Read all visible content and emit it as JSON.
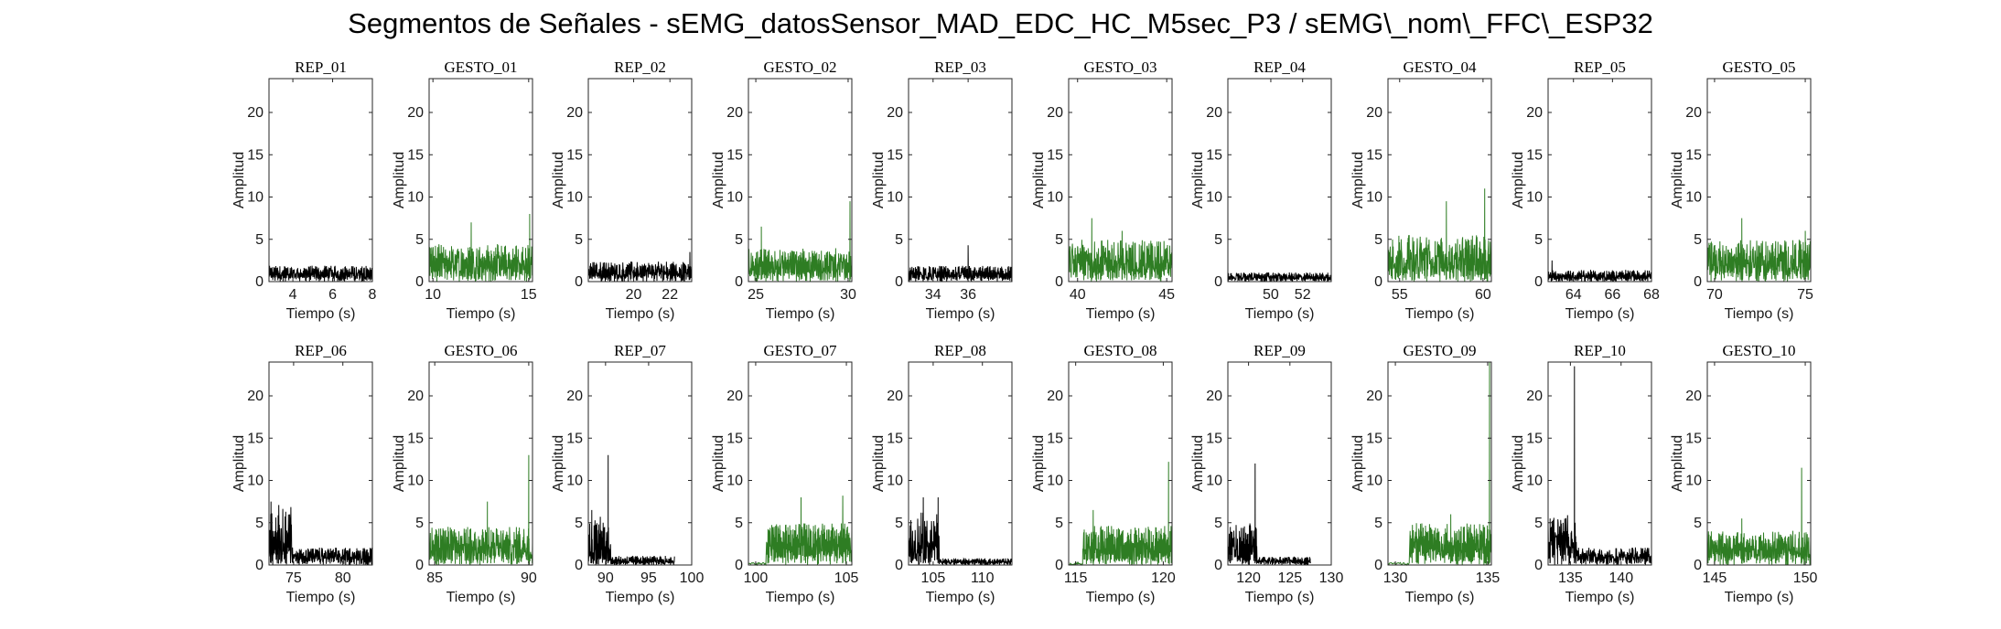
{
  "figure": {
    "title": "Segmentos de Señales - sEMG_datosSensor_MAD_EDC_HC_M5sec_P3 / sEMG\\_nom\\_FFC\\_ESP32"
  },
  "colors": {
    "rep": "#000000",
    "gesto": "#2e7d23",
    "axes": "#262626"
  },
  "chart_data": [
    {
      "type": "line",
      "title": "REP_01",
      "xlabel": "Tiempo (s)",
      "ylabel": "Amplitud",
      "xlim": [
        2.8,
        8
      ],
      "ylim": [
        0,
        24
      ],
      "xticks": [
        4,
        6,
        8
      ],
      "yticks": [
        0,
        5,
        10,
        15,
        20
      ],
      "color": "rep",
      "series": [
        {
          "x_range": [
            2.8,
            8
          ],
          "baseline": 0.9,
          "noise": 1.0,
          "peaks": []
        }
      ]
    },
    {
      "type": "line",
      "title": "GESTO_01",
      "xlabel": "Tiempo (s)",
      "ylabel": "Amplitud",
      "xlim": [
        9.8,
        15.2
      ],
      "ylim": [
        0,
        24
      ],
      "xticks": [
        10,
        15
      ],
      "yticks": [
        0,
        5,
        10,
        15,
        20
      ],
      "color": "gesto",
      "series": [
        {
          "x_range": [
            9.8,
            15.2
          ],
          "baseline": 2.0,
          "noise": 2.5,
          "peaks": [
            [
              12.0,
              7.0
            ],
            [
              15.05,
              8.0
            ]
          ]
        }
      ]
    },
    {
      "type": "line",
      "title": "REP_02",
      "xlabel": "Tiempo (s)",
      "ylabel": "Amplitud",
      "xlim": [
        17.5,
        23.2
      ],
      "ylim": [
        0,
        24
      ],
      "xticks": [
        20,
        22
      ],
      "yticks": [
        0,
        5,
        10,
        15,
        20
      ],
      "color": "rep",
      "series": [
        {
          "x_range": [
            17.5,
            23.2
          ],
          "baseline": 1.1,
          "noise": 1.3,
          "peaks": [
            [
              23.1,
              3.5
            ]
          ]
        }
      ]
    },
    {
      "type": "line",
      "title": "GESTO_02",
      "xlabel": "Tiempo (s)",
      "ylabel": "Amplitud",
      "xlim": [
        24.6,
        30.2
      ],
      "ylim": [
        0,
        24
      ],
      "xticks": [
        25,
        30
      ],
      "yticks": [
        0,
        5,
        10,
        15,
        20
      ],
      "color": "gesto",
      "series": [
        {
          "x_range": [
            24.6,
            30.2
          ],
          "baseline": 1.8,
          "noise": 2.2,
          "peaks": [
            [
              25.3,
              6.5
            ],
            [
              30.1,
              9.5
            ]
          ]
        }
      ]
    },
    {
      "type": "line",
      "title": "REP_03",
      "xlabel": "Tiempo (s)",
      "ylabel": "Amplitud",
      "xlim": [
        32.6,
        38.5
      ],
      "ylim": [
        0,
        24
      ],
      "xticks": [
        34,
        36
      ],
      "yticks": [
        0,
        5,
        10,
        15,
        20
      ],
      "color": "rep",
      "series": [
        {
          "x_range": [
            32.6,
            38.5
          ],
          "baseline": 0.8,
          "noise": 1.1,
          "peaks": [
            [
              36.0,
              4.3
            ]
          ]
        }
      ]
    },
    {
      "type": "line",
      "title": "GESTO_03",
      "xlabel": "Tiempo (s)",
      "ylabel": "Amplitud",
      "xlim": [
        39.5,
        45.3
      ],
      "ylim": [
        0,
        24
      ],
      "xticks": [
        40,
        45
      ],
      "yticks": [
        0,
        5,
        10,
        15,
        20
      ],
      "color": "gesto",
      "series": [
        {
          "x_range": [
            39.5,
            45.3
          ],
          "baseline": 2.2,
          "noise": 2.8,
          "peaks": [
            [
              40.8,
              7.5
            ],
            [
              42.5,
              6.0
            ]
          ]
        }
      ]
    },
    {
      "type": "line",
      "title": "REP_04",
      "xlabel": "Tiempo (s)",
      "ylabel": "Amplitud",
      "xlim": [
        47.3,
        53.8
      ],
      "ylim": [
        0,
        24
      ],
      "xticks": [
        50,
        52
      ],
      "yticks": [
        0,
        5,
        10,
        15,
        20
      ],
      "color": "rep",
      "series": [
        {
          "x_range": [
            47.3,
            53.8
          ],
          "baseline": 0.5,
          "noise": 0.6,
          "peaks": []
        }
      ]
    },
    {
      "type": "line",
      "title": "GESTO_04",
      "xlabel": "Tiempo (s)",
      "ylabel": "Amplitud",
      "xlim": [
        54.3,
        60.5
      ],
      "ylim": [
        0,
        24
      ],
      "xticks": [
        55,
        60
      ],
      "yticks": [
        0,
        5,
        10,
        15,
        20
      ],
      "color": "gesto",
      "series": [
        {
          "x_range": [
            54.3,
            60.5
          ],
          "baseline": 2.4,
          "noise": 3.2,
          "peaks": [
            [
              57.8,
              9.5
            ],
            [
              60.1,
              11.0
            ]
          ]
        }
      ]
    },
    {
      "type": "line",
      "title": "REP_05",
      "xlabel": "Tiempo (s)",
      "ylabel": "Amplitud",
      "xlim": [
        62.7,
        68
      ],
      "ylim": [
        0,
        24
      ],
      "xticks": [
        64,
        66,
        68
      ],
      "yticks": [
        0,
        5,
        10,
        15,
        20
      ],
      "color": "rep",
      "series": [
        {
          "x_range": [
            62.7,
            68
          ],
          "baseline": 0.6,
          "noise": 0.8,
          "peaks": [
            [
              62.9,
              2.5
            ]
          ]
        }
      ]
    },
    {
      "type": "line",
      "title": "GESTO_05",
      "xlabel": "Tiempo (s)",
      "ylabel": "Amplitud",
      "xlim": [
        69.6,
        75.3
      ],
      "ylim": [
        0,
        24
      ],
      "xticks": [
        70,
        75
      ],
      "yticks": [
        0,
        5,
        10,
        15,
        20
      ],
      "color": "gesto",
      "series": [
        {
          "x_range": [
            69.6,
            75.3
          ],
          "baseline": 2.2,
          "noise": 2.8,
          "peaks": [
            [
              71.5,
              7.5
            ],
            [
              75.0,
              6.0
            ]
          ]
        }
      ]
    },
    {
      "type": "line",
      "title": "REP_06",
      "xlabel": "Tiempo (s)",
      "ylabel": "Amplitud",
      "xlim": [
        72.5,
        83
      ],
      "ylim": [
        0,
        24
      ],
      "xticks": [
        75,
        80
      ],
      "yticks": [
        0,
        5,
        10,
        15,
        20
      ],
      "color": "rep",
      "series": [
        {
          "x_range": [
            72.5,
            83
          ],
          "baseline": 1.0,
          "noise": 1.1,
          "peaks": [
            [
              72.7,
              7.5
            ],
            [
              74.2,
              6.3
            ]
          ],
          "burst": [
            72.5,
            74.8,
            3.2
          ]
        }
      ]
    },
    {
      "type": "line",
      "title": "GESTO_06",
      "xlabel": "Tiempo (s)",
      "ylabel": "Amplitud",
      "xlim": [
        84.7,
        90.2
      ],
      "ylim": [
        0,
        24
      ],
      "xticks": [
        85,
        90
      ],
      "yticks": [
        0,
        5,
        10,
        15,
        20
      ],
      "color": "gesto",
      "series": [
        {
          "x_range": [
            84.7,
            90.2
          ],
          "baseline": 2.0,
          "noise": 2.6,
          "peaks": [
            [
              87.8,
              7.5
            ],
            [
              90.0,
              13.0
            ]
          ]
        }
      ]
    },
    {
      "type": "line",
      "title": "REP_07",
      "xlabel": "Tiempo (s)",
      "ylabel": "Amplitud",
      "xlim": [
        88,
        100
      ],
      "ylim": [
        0,
        24
      ],
      "xticks": [
        90,
        95,
        100
      ],
      "yticks": [
        0,
        5,
        10,
        15,
        20
      ],
      "color": "rep",
      "series": [
        {
          "x_range": [
            88,
            98
          ],
          "baseline": 0.5,
          "noise": 0.6,
          "peaks": [
            [
              90.3,
              13.0
            ],
            [
              88.4,
              6.5
            ]
          ],
          "burst": [
            88,
            90.6,
            3.0
          ]
        }
      ]
    },
    {
      "type": "line",
      "title": "GESTO_07",
      "xlabel": "Tiempo (s)",
      "ylabel": "Amplitud",
      "xlim": [
        99.6,
        105.3
      ],
      "ylim": [
        0,
        24
      ],
      "xticks": [
        100,
        105
      ],
      "yticks": [
        0,
        5,
        10,
        15,
        20
      ],
      "color": "gesto",
      "series": [
        {
          "x_range": [
            100.6,
            105.3
          ],
          "baseline": 2.2,
          "noise": 2.8,
          "peaks": [
            [
              102.5,
              8.0
            ],
            [
              104.8,
              8.2
            ]
          ],
          "pre": [
            99.6,
            100.6,
            0.3
          ]
        }
      ]
    },
    {
      "type": "line",
      "title": "REP_08",
      "xlabel": "Tiempo (s)",
      "ylabel": "Amplitud",
      "xlim": [
        102.5,
        113
      ],
      "ylim": [
        0,
        24
      ],
      "xticks": [
        105,
        110
      ],
      "yticks": [
        0,
        5,
        10,
        15,
        20
      ],
      "color": "rep",
      "series": [
        {
          "x_range": [
            102.5,
            113
          ],
          "baseline": 0.4,
          "noise": 0.4,
          "peaks": [
            [
              104.0,
              8.0
            ],
            [
              105.5,
              8.0
            ]
          ],
          "burst": [
            102.5,
            105.6,
            3.5
          ]
        }
      ]
    },
    {
      "type": "line",
      "title": "GESTO_08",
      "xlabel": "Tiempo (s)",
      "ylabel": "Amplitud",
      "xlim": [
        114.6,
        120.5
      ],
      "ylim": [
        0,
        24
      ],
      "xticks": [
        115,
        120
      ],
      "yticks": [
        0,
        5,
        10,
        15,
        20
      ],
      "color": "gesto",
      "series": [
        {
          "x_range": [
            115.4,
            120.5
          ],
          "baseline": 2.0,
          "noise": 2.7,
          "peaks": [
            [
              116.0,
              6.5
            ],
            [
              120.3,
              12.2
            ]
          ],
          "pre": [
            114.6,
            115.4,
            0.3
          ]
        }
      ]
    },
    {
      "type": "line",
      "title": "REP_09",
      "xlabel": "Tiempo (s)",
      "ylabel": "Amplitud",
      "xlim": [
        117.5,
        130
      ],
      "ylim": [
        0,
        24
      ],
      "xticks": [
        120,
        125,
        130
      ],
      "yticks": [
        0,
        5,
        10,
        15,
        20
      ],
      "color": "rep",
      "series": [
        {
          "x_range": [
            117.5,
            127.5
          ],
          "baseline": 0.5,
          "noise": 0.5,
          "peaks": [
            [
              120.8,
              12.0
            ],
            [
              117.8,
              4.5
            ]
          ],
          "burst": [
            117.5,
            121.0,
            2.6
          ]
        }
      ]
    },
    {
      "type": "line",
      "title": "GESTO_09",
      "xlabel": "Tiempo (s)",
      "ylabel": "Amplitud",
      "xlim": [
        129.6,
        135.2
      ],
      "ylim": [
        0,
        24
      ],
      "xticks": [
        130,
        135
      ],
      "yticks": [
        0,
        5,
        10,
        15,
        20
      ],
      "color": "gesto",
      "series": [
        {
          "x_range": [
            130.8,
            135.2
          ],
          "baseline": 2.2,
          "noise": 2.8,
          "peaks": [
            [
              133.0,
              6.0
            ],
            [
              135.1,
              24.0
            ]
          ],
          "pre": [
            129.6,
            130.8,
            0.3
          ]
        }
      ]
    },
    {
      "type": "line",
      "title": "REP_10",
      "xlabel": "Tiempo (s)",
      "ylabel": "Amplitud",
      "xlim": [
        132.8,
        143
      ],
      "ylim": [
        0,
        24
      ],
      "xticks": [
        135,
        140
      ],
      "yticks": [
        0,
        5,
        10,
        15,
        20
      ],
      "color": "rep",
      "series": [
        {
          "x_range": [
            132.8,
            143
          ],
          "baseline": 1.0,
          "noise": 1.1,
          "peaks": [
            [
              135.4,
              23.5
            ],
            [
              133.0,
              5.5
            ]
          ],
          "burst": [
            132.8,
            135.6,
            2.8
          ]
        }
      ]
    },
    {
      "type": "line",
      "title": "GESTO_10",
      "xlabel": "Tiempo (s)",
      "ylabel": "Amplitud",
      "xlim": [
        144.6,
        150.3
      ],
      "ylim": [
        0,
        24
      ],
      "xticks": [
        145,
        150
      ],
      "yticks": [
        0,
        5,
        10,
        15,
        20
      ],
      "color": "gesto",
      "series": [
        {
          "x_range": [
            144.6,
            150.3
          ],
          "baseline": 1.8,
          "noise": 2.3,
          "peaks": [
            [
              146.5,
              5.5
            ],
            [
              149.8,
              11.5
            ]
          ]
        }
      ]
    }
  ]
}
